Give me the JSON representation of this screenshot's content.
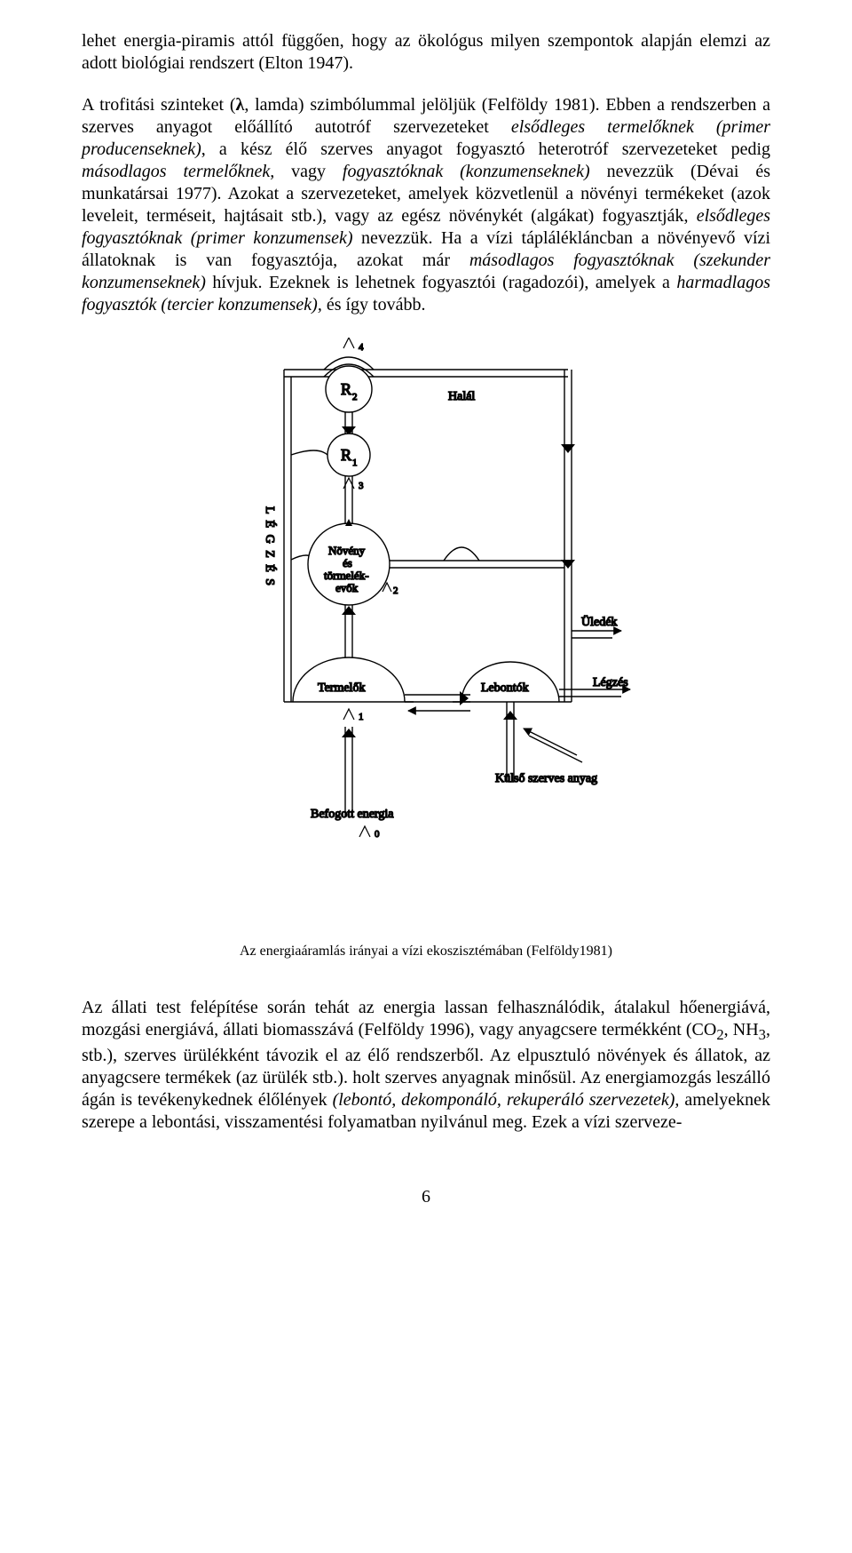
{
  "paragraph1_html": "lehet energia-piramis attól függően, hogy az ökológus milyen szempontok alapján elemzi az adott biológiai rendszert (Elton 1947).",
  "paragraph2_html": "A trofitási szinteket (<b>λ</b>, lamda) szimbólummal jelöljük (Felföldy 1981). Ebben a rendszerben a szerves anyagot előállító autotróf szervezeteket <i>elsődleges termelőknek (primer producenseknek)</i>, a kész élő szerves anyagot fogyasztó heterotróf szervezeteket pedig <i>másodlagos termelőknek,</i> vagy <i>fogyasztóknak (konzumenseknek)</i> nevezzük (Dévai és munkatársai 1977). Azokat a szervezeteket, amelyek közvetlenül a növényi termékeket (azok leveleit, terméseit, hajtásait stb.), vagy az egész növénykét (algákat) fogyasztják, <i>elsődleges fogyasztóknak (primer konzumensek)</i> nevezzük. Ha a vízi táplálékláncban a növényevő vízi állatoknak is van fogyasztója, azokat már <i>másodlagos fogyasztóknak (szekunder konzumenseknek)</i> hívjuk. Ezeknek is lehetnek fogyasztói (ragadozói), amelyek a <i>harmadlagos fogyasztók (tercier konzumensek),</i> és így tovább.",
  "paragraph3_html": "Az állati test felépítése során tehát az energia lassan felhasználódik, átalakul hőenergiává, mozgási energiává, állati biomasszává (Felföldy 1996), vagy anyagcsere termékként (CO<sub>2</sub>, NH<sub>3</sub>, stb.), szerves ürülékként távozik el az élő rendszerből. Az elpusztuló növények és állatok, az anyagcsere termékek (az ürülék stb.). holt szerves anyagnak minősül. Az energiamozgás leszálló ágán is tevékenykednek élőlények <i>(lebontó, dekomponáló, rekuperáló szervezetek),</i> amelyeknek szerepe a lebontási, visszamentési folyamatban nyilvánul meg. Ezek a vízi szerveze-",
  "figure": {
    "caption": "Az energiaáramlás irányai a vízi ekoszisztémában (Felföldy1981)",
    "labels": {
      "r2": "R",
      "r2_sub": "2",
      "r1": "R",
      "r1_sub": "1",
      "halal": "Halál",
      "legzes_vert": "L É G Z É S",
      "noveny1": "Növény",
      "noveny2": "és",
      "noveny3": "törmelék-",
      "noveny4": "evők",
      "uledek": "Üledék",
      "termelok": "Termelők",
      "lebontok": "Lebontók",
      "legzes": "Légzés",
      "kulso": "Külső szerves anyag",
      "befogott": "Befogott energia",
      "l0": "0",
      "l1": "1",
      "l2": "2",
      "l3": "3",
      "l4": "4"
    },
    "style": {
      "stroke": "#000000",
      "stroke_width": 1.4,
      "bg": "#ffffff",
      "font_family": "Times New Roman",
      "label_size": 14
    }
  },
  "page_number": "6"
}
